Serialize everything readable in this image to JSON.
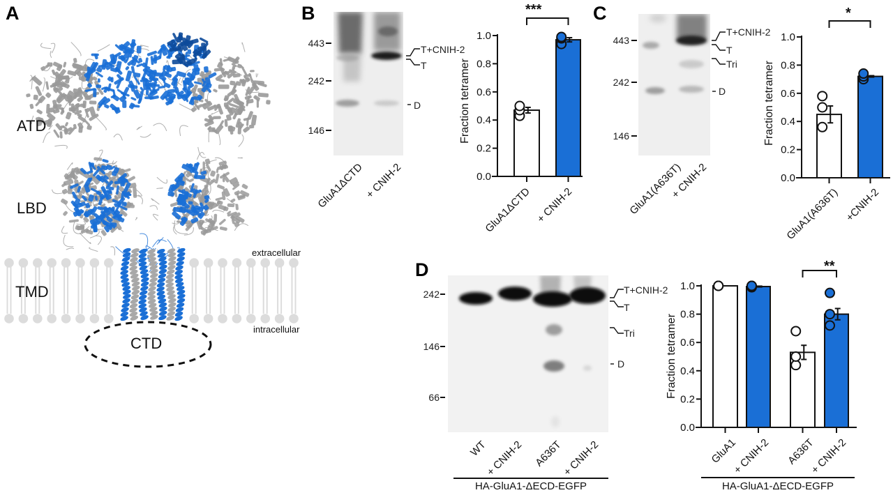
{
  "figure": {
    "panels": [
      "A",
      "B",
      "C",
      "D"
    ],
    "colors": {
      "blue": "#1a6fd6",
      "blue_dark": "#0d4a9a",
      "gray": "#9a9a9a",
      "lipid": "#dcdcdc",
      "black": "#111111"
    }
  },
  "panelA": {
    "letter": "A",
    "domains": {
      "atd": "ATD",
      "lbd": "LBD",
      "tmd": "TMD",
      "ctd": "CTD"
    },
    "membrane": {
      "extracellular": "extracellular",
      "intracellular": "intracellular"
    }
  },
  "panelB": {
    "letter": "B",
    "gel": {
      "mw_markers": [
        "443",
        "242",
        "146"
      ],
      "band_labels": [
        "T+CNIH-2",
        "T",
        "D"
      ],
      "lanes": [
        "GluA1ΔCTD",
        "+ CNIH-2"
      ]
    }
  },
  "panelC": {
    "letter": "C",
    "gel": {
      "mw_markers": [
        "443",
        "242",
        "146"
      ],
      "band_labels": [
        "T+CNIH-2",
        "T",
        "Tri",
        "D"
      ],
      "lanes": [
        "GluA1(A636T)",
        "+ CNIH-2"
      ]
    }
  },
  "panelD": {
    "letter": "D",
    "gel": {
      "mw_markers": [
        "242",
        "146",
        "66"
      ],
      "band_labels": [
        "T+CNIH-2",
        "T",
        "Tri",
        "D"
      ],
      "lanes": [
        "WT",
        "+ CNIH-2",
        "A636T",
        "+ CNIH-2"
      ],
      "group_label": "HA-GluA1-ΔECD-EGFP"
    }
  },
  "chart_data": [
    {
      "panel": "B",
      "type": "bar",
      "title": "",
      "xlabel": "",
      "ylabel": "Fraction tetramer",
      "ylim": [
        0,
        1.0
      ],
      "yticks": [
        "0.0",
        "0.2",
        "0.4",
        "0.6",
        "0.8",
        "1.0"
      ],
      "categories": [
        "GluA1ΔCTD",
        "+ CNIH-2"
      ],
      "values": [
        0.47,
        0.97
      ],
      "sem": [
        0.02,
        0.015
      ],
      "bar_colors": [
        "#ffffff",
        "#1a6fd6"
      ],
      "points": [
        [
          0.43,
          0.47,
          0.5
        ],
        [
          0.94,
          0.98,
          0.99
        ]
      ],
      "significance": [
        {
          "between": [
            0,
            1
          ],
          "label": "***"
        }
      ],
      "grid": false
    },
    {
      "panel": "C",
      "type": "bar",
      "title": "",
      "xlabel": "",
      "ylabel": "Fraction tetramer",
      "ylim": [
        0,
        1.0
      ],
      "yticks": [
        "0.0",
        "0.2",
        "0.4",
        "0.6",
        "0.8",
        "1.0"
      ],
      "categories": [
        "GluA1(A636T)",
        "+CNIH-2"
      ],
      "values": [
        0.45,
        0.72
      ],
      "sem": [
        0.06,
        0.005
      ],
      "bar_colors": [
        "#ffffff",
        "#1a6fd6"
      ],
      "points": [
        [
          0.36,
          0.5,
          0.58
        ],
        [
          0.7,
          0.72,
          0.74
        ]
      ],
      "significance": [
        {
          "between": [
            0,
            1
          ],
          "label": "*"
        }
      ],
      "grid": false
    },
    {
      "panel": "D",
      "type": "bar",
      "title": "",
      "xlabel": "HA-GluA1-ΔECD-EGFP",
      "ylabel": "Fraction tetramer",
      "ylim": [
        0,
        1.0
      ],
      "yticks": [
        "0.0",
        "0.2",
        "0.4",
        "0.6",
        "0.8",
        "1.0"
      ],
      "categories": [
        "GluA1",
        "+ CNIH-2",
        "A636T",
        "+ CNIH-2"
      ],
      "values": [
        1.0,
        0.995,
        0.53,
        0.8
      ],
      "sem": [
        0.0,
        0.003,
        0.05,
        0.04
      ],
      "bar_colors": [
        "#ffffff",
        "#1a6fd6",
        "#ffffff",
        "#1a6fd6"
      ],
      "points": [
        [
          1.0,
          1.0,
          1.0
        ],
        [
          0.99,
          1.0,
          1.0
        ],
        [
          0.44,
          0.5,
          0.68
        ],
        [
          0.72,
          0.8,
          0.95
        ]
      ],
      "significance": [
        {
          "between": [
            2,
            3
          ],
          "label": "**"
        }
      ],
      "grid": false
    }
  ]
}
